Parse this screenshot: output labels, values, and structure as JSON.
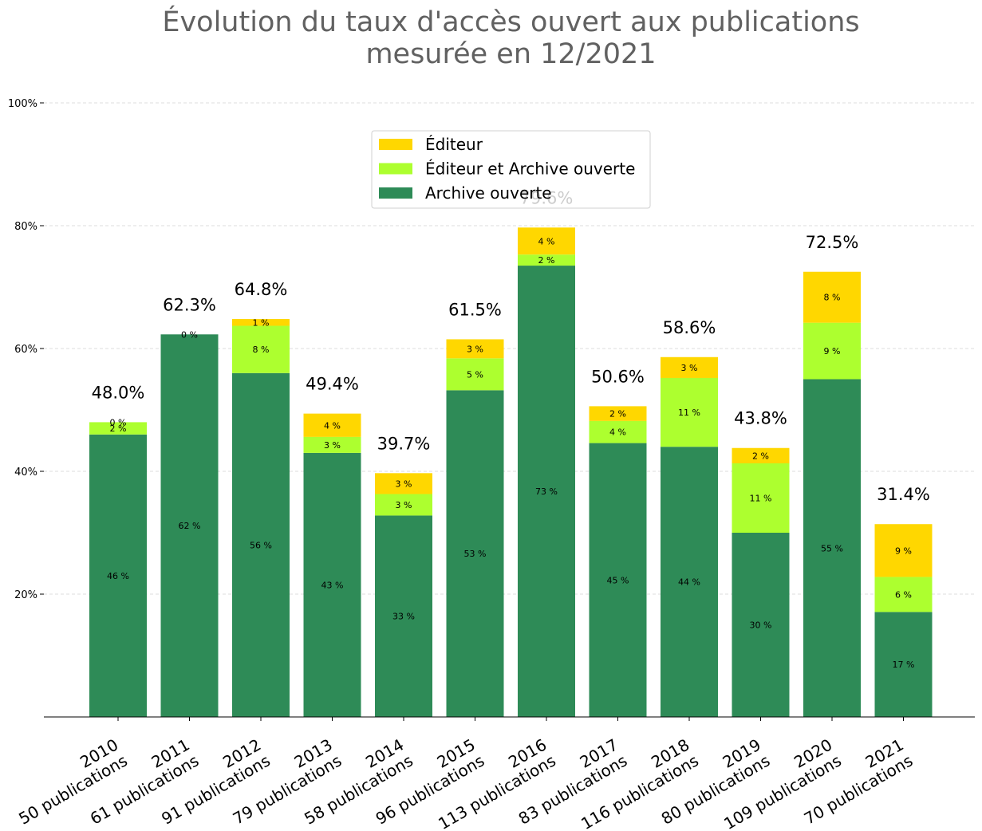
{
  "chart_data": {
    "type": "bar",
    "stacked": true,
    "title": [
      "Évolution du taux d'accès ouvert aux publications",
      "mesurée en 12/2021"
    ],
    "categories": [
      [
        "2010",
        "50 publications"
      ],
      [
        "2011",
        "61 publications"
      ],
      [
        "2012",
        "91 publications"
      ],
      [
        "2013",
        "79 publications"
      ],
      [
        "2014",
        "58 publications"
      ],
      [
        "2015",
        "96 publications"
      ],
      [
        "2016",
        "113 publications"
      ],
      [
        "2017",
        "83 publications"
      ],
      [
        "2018",
        "116 publications"
      ],
      [
        "2019",
        "80 publications"
      ],
      [
        "2020",
        "109 publications"
      ],
      [
        "2021",
        "70 publications"
      ]
    ],
    "series": [
      {
        "name": "Archive ouverte",
        "color": "#2e8b57",
        "values": [
          46.0,
          62.3,
          56.0,
          43.0,
          32.8,
          53.2,
          73.5,
          44.6,
          44.0,
          30.0,
          55.0,
          17.1
        ],
        "labels": [
          "46 %",
          "62 %",
          "56 %",
          "43 %",
          "33 %",
          "53 %",
          "73 %",
          "45 %",
          "44 %",
          "30 %",
          "55 %",
          "17 %"
        ]
      },
      {
        "name": "Éditeur et Archive ouverte",
        "color": "#adff2f",
        "values": [
          2.0,
          0.0,
          7.7,
          2.6,
          3.5,
          5.2,
          1.8,
          3.6,
          11.2,
          11.3,
          9.2,
          5.7
        ],
        "labels": [
          "2 %",
          "",
          "8 %",
          "3 %",
          "3 %",
          "5 %",
          "2 %",
          "4 %",
          "11 %",
          "11 %",
          "9 %",
          "6 %"
        ]
      },
      {
        "name": "Éditeur",
        "color": "#ffd700",
        "values": [
          0.0,
          0.0,
          1.1,
          3.8,
          3.4,
          3.1,
          4.4,
          2.4,
          3.4,
          2.5,
          8.3,
          8.6
        ],
        "labels": [
          "0 %",
          "0 %",
          "1 %",
          "4 %",
          "3 %",
          "3 %",
          "4 %",
          "2 %",
          "3 %",
          "2 %",
          "8 %",
          "9 %"
        ]
      }
    ],
    "totals": [
      "48.0%",
      "62.3%",
      "64.8%",
      "49.4%",
      "39.7%",
      "61.5%",
      "79.6%",
      "50.6%",
      "58.6%",
      "43.8%",
      "72.5%",
      "31.4%"
    ],
    "yticks": [
      "20%",
      "40%",
      "60%",
      "80%",
      "100%"
    ],
    "ylim": [
      0,
      100
    ],
    "grid": "y",
    "legend_position": "top-center",
    "legend_order": [
      "Éditeur",
      "Éditeur et Archive ouverte",
      "Archive ouverte"
    ]
  }
}
